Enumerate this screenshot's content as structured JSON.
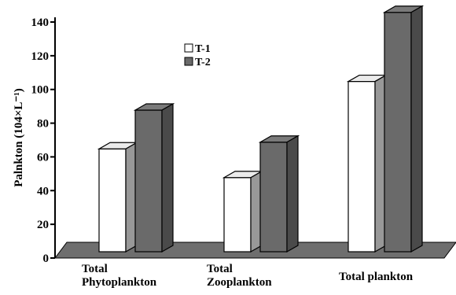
{
  "chart_data": {
    "type": "bar",
    "categories": [
      [
        "Total",
        "Phytoplankton"
      ],
      [
        "Total",
        "Zooplankton"
      ],
      [
        "Total plankton"
      ]
    ],
    "series": [
      {
        "name": "T-1",
        "values": [
          61,
          44,
          101
        ],
        "color": "#ffffff"
      },
      {
        "name": "T-2",
        "values": [
          84,
          65,
          142
        ],
        "color": "#6a6a6a"
      }
    ],
    "ylabel": "Palnkton (104×L⁻¹)",
    "ylim": [
      0,
      140
    ],
    "yticks": [
      0,
      20,
      40,
      60,
      80,
      100,
      120,
      140
    ],
    "legend_position": "top-center",
    "three_d": true,
    "floor_color": "#6e6e6e",
    "grid": false
  }
}
